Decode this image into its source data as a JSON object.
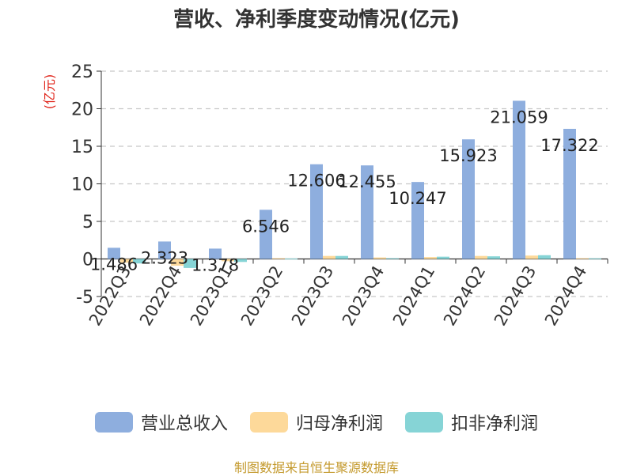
{
  "chart_data": {
    "type": "bar",
    "title": "营收、净利季度变动情况(亿元)",
    "unit_label": "(亿元)",
    "categories": [
      "2022Q3",
      "2022Q4",
      "2023Q1",
      "2023Q2",
      "2023Q3",
      "2023Q4",
      "2024Q1",
      "2024Q2",
      "2024Q3",
      "2024Q4"
    ],
    "series": [
      {
        "name": "营业总收入",
        "color": "#8eaede",
        "values": [
          1.486,
          2.323,
          1.378,
          6.546,
          12.606,
          12.455,
          10.247,
          15.923,
          21.059,
          17.322
        ]
      },
      {
        "name": "归母净利润",
        "color": "#fdd99a",
        "values": [
          -0.5,
          -0.9,
          -0.3,
          0.1,
          0.4,
          0.2,
          0.25,
          0.4,
          0.45,
          0.1
        ]
      },
      {
        "name": "扣非净利润",
        "color": "#86d4d6",
        "values": [
          -0.6,
          -1.2,
          -0.4,
          0.05,
          0.4,
          0.1,
          0.3,
          0.35,
          0.5,
          0.08
        ]
      }
    ],
    "data_labels": [
      "1.486",
      "2.323",
      "1.378",
      "6.546",
      "12.606",
      "12.455",
      "10.247",
      "15.923",
      "21.059",
      "17.322"
    ],
    "ylim": [
      -5,
      25
    ],
    "yticks": [
      -5,
      0,
      5,
      10,
      15,
      20,
      25
    ],
    "grid": true,
    "legend_position": "bottom"
  },
  "footer": {
    "source": "制图数据来自恒生聚源数据库"
  }
}
